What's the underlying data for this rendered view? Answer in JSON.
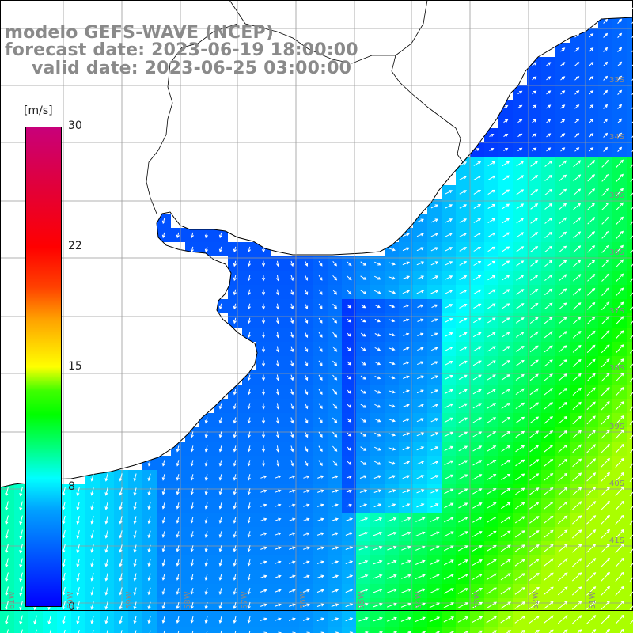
{
  "title": {
    "line1": "modelo GEFS-WAVE (NCEP)",
    "line2": "forecast date: 2023-06-19 18:00:00",
    "line3": "valid date: 2023-06-25 03:00:00"
  },
  "colorbar": {
    "unit": "[m/s]",
    "ticks": [
      "30",
      "22",
      "15",
      "8",
      "0"
    ],
    "range": [
      0,
      30
    ],
    "colors": [
      "#0000ff",
      "#00ffff",
      "#00ff00",
      "#ffff00",
      "#ff0000",
      "#c8007a"
    ]
  },
  "map": {
    "variable": "wind speed and direction",
    "land_color": "#ffffff",
    "coastline_color": "#000000",
    "grid_color": "#999999",
    "arrow_color": "#ffffff",
    "lon_labels": [
      "61W",
      "60W",
      "59W",
      "58W",
      "57W",
      "56W",
      "55W",
      "54W",
      "53W",
      "52W",
      "51W"
    ],
    "lat_labels": [
      "33S",
      "34S",
      "35S",
      "36S",
      "37S",
      "38S",
      "39S",
      "40S",
      "41S"
    ]
  }
}
